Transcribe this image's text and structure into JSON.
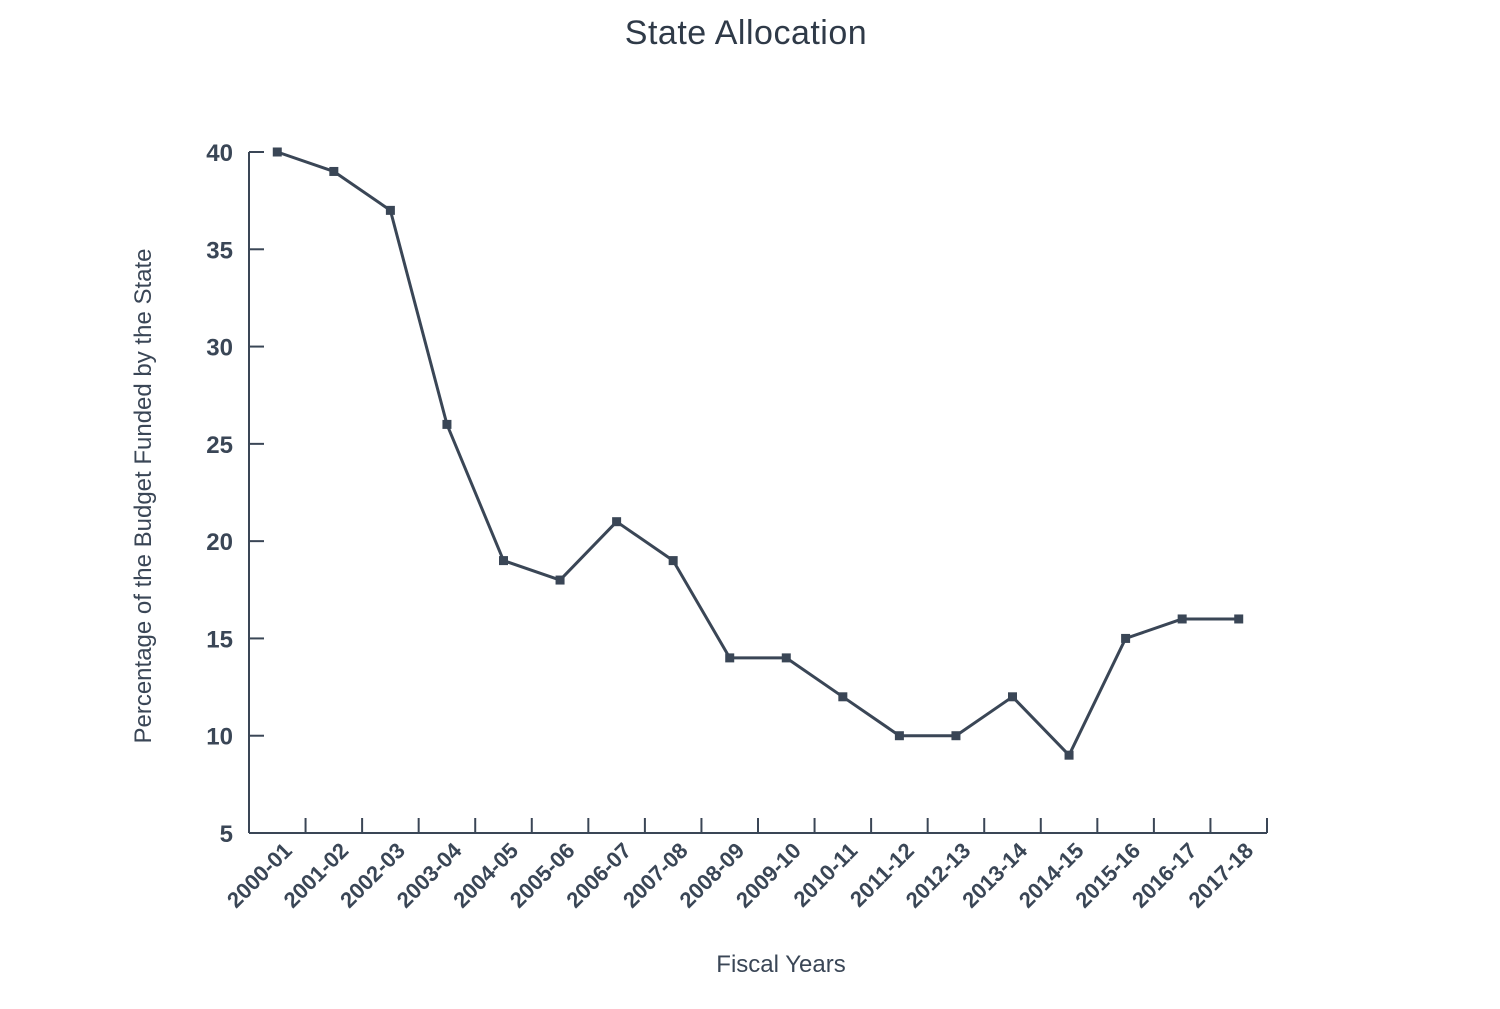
{
  "chart_data": {
    "type": "line",
    "title": "State Allocation",
    "xlabel": "Fiscal Years",
    "ylabel": "Percentage of the Budget Funded by the State",
    "categories": [
      "2000-01",
      "2001-02",
      "2002-03",
      "2003-04",
      "2004-05",
      "2005-06",
      "2006-07",
      "2007-08",
      "2008-09",
      "2009-10",
      "2010-11",
      "2011-12",
      "2012-13",
      "2013-14",
      "2014-15",
      "2015-16",
      "2016-17",
      "2017-18"
    ],
    "series": [
      {
        "values": [
          40,
          39,
          37,
          26,
          19,
          18,
          21,
          19,
          14,
          14,
          12,
          10,
          10,
          12,
          9,
          15,
          16,
          16
        ]
      }
    ],
    "ylim": [
      5,
      40
    ],
    "yticks": [
      5,
      10,
      15,
      20,
      25,
      30,
      35,
      40
    ],
    "grid": false,
    "legend": "none",
    "colors": {
      "line": "#3a4656",
      "axis": "#3a4656",
      "text": "#3a4656"
    }
  }
}
